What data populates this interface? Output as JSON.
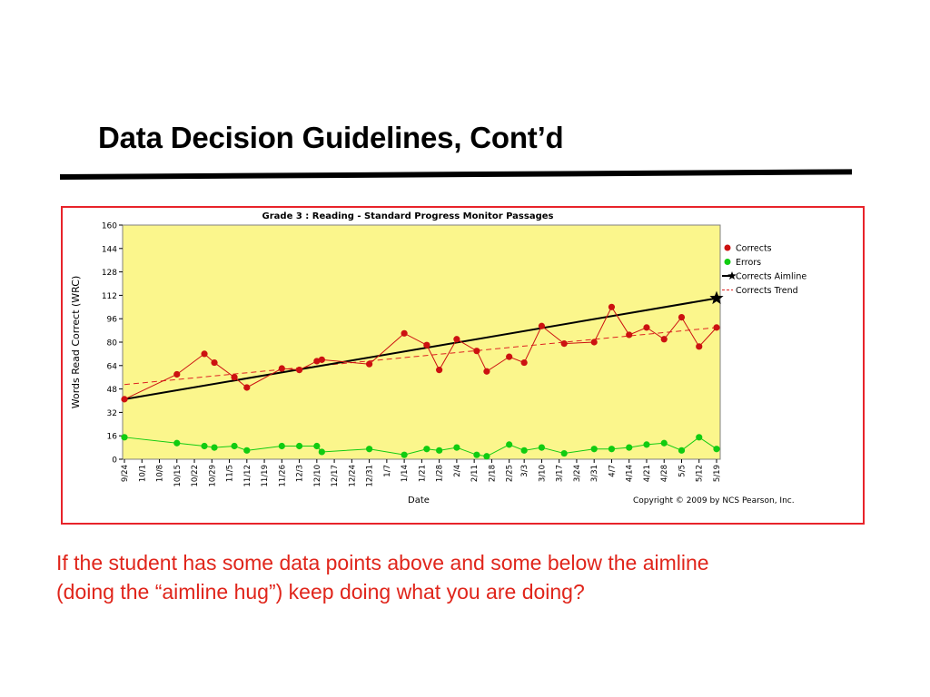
{
  "slide": {
    "title": "Data Decision Guidelines, Cont’d",
    "caption_line1": "If the student has some data points above and some below the aimline",
    "caption_line2": "(doing the “aimline hug”) keep doing what you are doing?"
  },
  "chart_data": {
    "type": "line",
    "title": "Grade 3 : Reading - Standard Progress Monitor Passages",
    "xlabel": "Date",
    "ylabel": "Words Read Correct (WRC)",
    "copyright": "Copyright © 2009 by NCS Pearson, Inc.",
    "ylim": [
      0,
      160
    ],
    "yticks": [
      0,
      16,
      32,
      48,
      64,
      80,
      96,
      112,
      128,
      144,
      160
    ],
    "grid": false,
    "legend_position": "right",
    "background_color": "#fbf68c",
    "x_tick_labels": [
      "9/24",
      "10/1",
      "10/8",
      "10/15",
      "10/22",
      "10/29",
      "11/5",
      "11/12",
      "11/19",
      "11/26",
      "12/3",
      "12/10",
      "12/17",
      "12/24",
      "12/31",
      "1/7",
      "1/14",
      "1/21",
      "1/28",
      "2/4",
      "2/11",
      "2/18",
      "2/25",
      "3/3",
      "3/10",
      "3/17",
      "3/24",
      "3/31",
      "4/7",
      "4/14",
      "4/21",
      "4/28",
      "5/5",
      "5/12",
      "5/19"
    ],
    "series": [
      {
        "name": "Corrects",
        "color": "#cc1111",
        "marker": "circle",
        "points": [
          [
            "9/24",
            41
          ],
          [
            "10/15",
            58
          ],
          [
            "10/26",
            72
          ],
          [
            "10/30",
            66
          ],
          [
            "11/7",
            56
          ],
          [
            "11/12",
            49
          ],
          [
            "11/26",
            62
          ],
          [
            "12/3",
            61
          ],
          [
            "12/10",
            67
          ],
          [
            "12/12",
            68
          ],
          [
            "12/31",
            65
          ],
          [
            "1/14",
            86
          ],
          [
            "1/23",
            78
          ],
          [
            "1/28",
            61
          ],
          [
            "2/4",
            82
          ],
          [
            "2/12",
            74
          ],
          [
            "2/16",
            60
          ],
          [
            "2/25",
            70
          ],
          [
            "3/3",
            66
          ],
          [
            "3/10",
            91
          ],
          [
            "3/19",
            79
          ],
          [
            "3/31",
            80
          ],
          [
            "4/7",
            104
          ],
          [
            "4/14",
            85
          ],
          [
            "4/21",
            90
          ],
          [
            "4/28",
            82
          ],
          [
            "5/5",
            97
          ],
          [
            "5/12",
            77
          ],
          [
            "5/19",
            90
          ]
        ]
      },
      {
        "name": "Errors",
        "color": "#11cc11",
        "marker": "circle",
        "points": [
          [
            "9/24",
            15
          ],
          [
            "10/15",
            11
          ],
          [
            "10/26",
            9
          ],
          [
            "10/30",
            8
          ],
          [
            "11/7",
            9
          ],
          [
            "11/12",
            6
          ],
          [
            "11/26",
            9
          ],
          [
            "12/3",
            9
          ],
          [
            "12/10",
            9
          ],
          [
            "12/12",
            5
          ],
          [
            "12/31",
            7
          ],
          [
            "1/14",
            3
          ],
          [
            "1/23",
            7
          ],
          [
            "1/28",
            6
          ],
          [
            "2/4",
            8
          ],
          [
            "2/12",
            3
          ],
          [
            "2/16",
            2
          ],
          [
            "2/25",
            10
          ],
          [
            "3/3",
            6
          ],
          [
            "3/10",
            8
          ],
          [
            "3/19",
            4
          ],
          [
            "3/31",
            7
          ],
          [
            "4/7",
            7
          ],
          [
            "4/14",
            8
          ],
          [
            "4/21",
            10
          ],
          [
            "4/28",
            11
          ],
          [
            "5/5",
            6
          ],
          [
            "5/12",
            15
          ],
          [
            "5/19",
            7
          ]
        ]
      },
      {
        "name": "Corrects Aimline",
        "color": "#000000",
        "marker": "star",
        "points": [
          [
            "9/24",
            41
          ],
          [
            "5/19",
            110
          ]
        ]
      },
      {
        "name": "Corrects Trend",
        "color": "#dd2222",
        "style": "dashed",
        "points": [
          [
            "9/24",
            51
          ],
          [
            "5/19",
            90
          ]
        ]
      }
    ]
  }
}
